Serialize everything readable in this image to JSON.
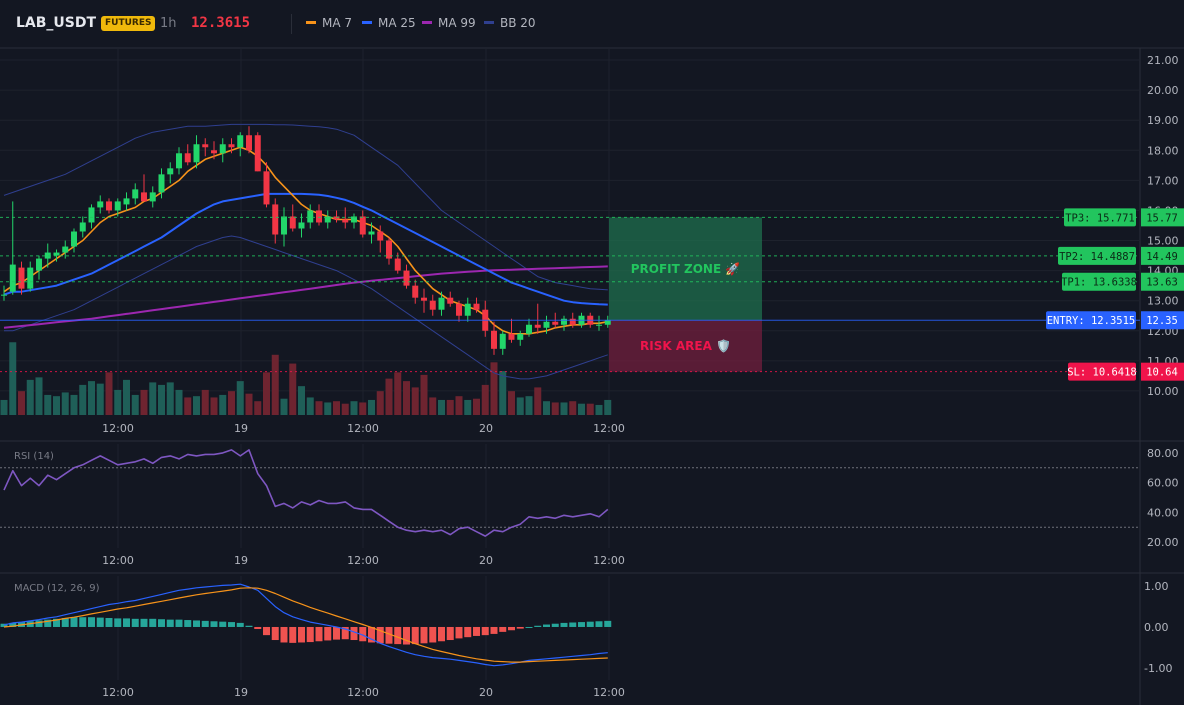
{
  "header": {
    "symbol": "LAB_USDT",
    "badge": "FUTURES",
    "timeframe": "1h",
    "last_price": "12.3615",
    "legend": [
      {
        "label": "MA 7",
        "color": "#f7931a"
      },
      {
        "label": "MA 25",
        "color": "#2962ff"
      },
      {
        "label": "MA 99",
        "color": "#9c27b0"
      },
      {
        "label": "BB 20",
        "color": "#2f3f8f"
      }
    ]
  },
  "colors": {
    "up": "#26a69a",
    "up_bright": "#22d66a",
    "down": "#f23645",
    "profit_zone": "#1f6f4e",
    "risk_area": "#6b1e3c",
    "entry_line": "#2962ff",
    "tp": "#22c55e",
    "sl": "#f0144b",
    "rsi": "#7e57c2"
  },
  "chart_data": [
    {
      "type": "candlestick",
      "pane": "price",
      "x_ticks": [
        "12:00",
        "19",
        "12:00",
        "20",
        "12:00"
      ],
      "y_ticks": [
        "21.00",
        "20.00",
        "19.00",
        "18.00",
        "17.00",
        "16.00",
        "15.00",
        "14.00",
        "13.00",
        "12.00",
        "11.00",
        "10.00"
      ],
      "ylim": [
        9.2,
        21.4
      ],
      "candles": [
        [
          13.2,
          13.5,
          13.0,
          13.2
        ],
        [
          13.3,
          16.3,
          13.2,
          14.2
        ],
        [
          14.1,
          14.3,
          13.2,
          13.4
        ],
        [
          13.4,
          14.3,
          13.3,
          14.1
        ],
        [
          14.0,
          14.5,
          13.7,
          14.4
        ],
        [
          14.4,
          14.9,
          14.1,
          14.6
        ],
        [
          14.5,
          14.7,
          14.3,
          14.6
        ],
        [
          14.6,
          15.0,
          14.4,
          14.8
        ],
        [
          14.8,
          15.4,
          14.6,
          15.3
        ],
        [
          15.3,
          15.8,
          15.1,
          15.6
        ],
        [
          15.6,
          16.2,
          15.4,
          16.1
        ],
        [
          16.1,
          16.5,
          15.9,
          16.3
        ],
        [
          16.3,
          16.4,
          15.9,
          16.0
        ],
        [
          16.0,
          16.4,
          15.8,
          16.3
        ],
        [
          16.2,
          16.6,
          16.0,
          16.4
        ],
        [
          16.4,
          16.9,
          16.2,
          16.7
        ],
        [
          16.6,
          17.2,
          16.4,
          16.3
        ],
        [
          16.3,
          16.8,
          16.1,
          16.6
        ],
        [
          16.6,
          17.4,
          16.4,
          17.2
        ],
        [
          17.2,
          17.6,
          16.9,
          17.4
        ],
        [
          17.4,
          18.1,
          17.2,
          17.9
        ],
        [
          17.9,
          18.2,
          17.5,
          17.6
        ],
        [
          17.6,
          18.5,
          17.4,
          18.2
        ],
        [
          18.2,
          18.4,
          17.8,
          18.1
        ],
        [
          18.0,
          18.3,
          17.7,
          17.9
        ],
        [
          17.9,
          18.4,
          17.6,
          18.2
        ],
        [
          18.2,
          18.4,
          17.9,
          18.1
        ],
        [
          18.1,
          18.6,
          17.8,
          18.5
        ],
        [
          18.5,
          18.8,
          17.9,
          18.0
        ],
        [
          18.5,
          18.6,
          17.3,
          17.3
        ],
        [
          17.3,
          17.6,
          16.1,
          16.2
        ],
        [
          16.2,
          16.4,
          14.9,
          15.2
        ],
        [
          15.2,
          16.1,
          14.8,
          15.8
        ],
        [
          15.8,
          16.2,
          15.3,
          15.4
        ],
        [
          15.4,
          15.9,
          15.1,
          15.6
        ],
        [
          15.6,
          16.2,
          15.4,
          16.0
        ],
        [
          16.0,
          16.2,
          15.5,
          15.6
        ],
        [
          15.6,
          16.0,
          15.4,
          15.8
        ],
        [
          15.8,
          16.0,
          15.6,
          15.7
        ],
        [
          15.7,
          16.1,
          15.4,
          15.6
        ],
        [
          15.6,
          15.9,
          15.4,
          15.8
        ],
        [
          15.8,
          16.0,
          15.1,
          15.2
        ],
        [
          15.2,
          15.6,
          14.9,
          15.3
        ],
        [
          15.3,
          15.5,
          14.6,
          15.0
        ],
        [
          15.0,
          15.1,
          14.2,
          14.4
        ],
        [
          14.4,
          14.6,
          13.9,
          14.0
        ],
        [
          14.0,
          14.2,
          13.4,
          13.5
        ],
        [
          13.5,
          13.7,
          12.9,
          13.1
        ],
        [
          13.1,
          13.4,
          12.6,
          13.0
        ],
        [
          13.0,
          13.2,
          12.5,
          12.7
        ],
        [
          12.7,
          13.3,
          12.5,
          13.1
        ],
        [
          13.1,
          13.3,
          12.8,
          12.9
        ],
        [
          12.9,
          13.0,
          12.3,
          12.5
        ],
        [
          12.5,
          13.1,
          12.3,
          12.9
        ],
        [
          12.9,
          13.1,
          12.6,
          12.7
        ],
        [
          12.7,
          13.0,
          11.8,
          12.0
        ],
        [
          12.0,
          12.3,
          11.2,
          11.4
        ],
        [
          11.4,
          12.0,
          11.2,
          11.9
        ],
        [
          11.9,
          12.4,
          11.6,
          11.7
        ],
        [
          11.7,
          12.0,
          11.5,
          11.9
        ],
        [
          11.9,
          12.4,
          11.8,
          12.2
        ],
        [
          12.2,
          12.9,
          11.9,
          12.1
        ],
        [
          12.1,
          12.5,
          11.9,
          12.3
        ],
        [
          12.3,
          12.6,
          12.1,
          12.2
        ],
        [
          12.2,
          12.5,
          12.0,
          12.4
        ],
        [
          12.4,
          12.6,
          12.1,
          12.2
        ],
        [
          12.2,
          12.6,
          12.1,
          12.5
        ],
        [
          12.5,
          12.6,
          12.1,
          12.2
        ],
        [
          12.2,
          12.5,
          12.0,
          12.2
        ],
        [
          12.2,
          12.5,
          12.1,
          12.36
        ]
      ],
      "volume": [
        0.12,
        0.58,
        0.19,
        0.28,
        0.3,
        0.16,
        0.15,
        0.18,
        0.16,
        0.24,
        0.27,
        0.25,
        0.34,
        0.2,
        0.28,
        0.16,
        0.2,
        0.26,
        0.24,
        0.26,
        0.2,
        0.14,
        0.15,
        0.2,
        0.14,
        0.16,
        0.19,
        0.27,
        0.17,
        0.11,
        0.34,
        0.48,
        0.13,
        0.41,
        0.23,
        0.14,
        0.11,
        0.1,
        0.11,
        0.09,
        0.11,
        0.1,
        0.12,
        0.19,
        0.29,
        0.34,
        0.27,
        0.22,
        0.32,
        0.14,
        0.12,
        0.12,
        0.15,
        0.12,
        0.13,
        0.24,
        0.42,
        0.35,
        0.19,
        0.14,
        0.15,
        0.22,
        0.11,
        0.1,
        0.1,
        0.11,
        0.09,
        0.09,
        0.08,
        0.12
      ],
      "ma7": [
        13.3,
        13.5,
        13.6,
        13.8,
        14.0,
        14.2,
        14.4,
        14.6,
        14.8,
        15.0,
        15.3,
        15.6,
        15.8,
        15.9,
        16.0,
        16.1,
        16.3,
        16.4,
        16.6,
        16.8,
        17.0,
        17.3,
        17.5,
        17.7,
        17.8,
        17.9,
        18.0,
        18.1,
        18.0,
        17.8,
        17.5,
        17.1,
        16.8,
        16.5,
        16.2,
        16.0,
        15.9,
        15.8,
        15.7,
        15.7,
        15.7,
        15.6,
        15.5,
        15.3,
        15.1,
        14.8,
        14.4,
        14.0,
        13.7,
        13.4,
        13.2,
        13.0,
        12.9,
        12.8,
        12.7,
        12.5,
        12.2,
        12.0,
        11.9,
        11.9,
        11.9,
        11.95,
        12.0,
        12.1,
        12.15,
        12.2,
        12.2,
        12.25,
        12.25,
        12.3
      ],
      "ma25": [
        13.2,
        13.3,
        13.3,
        13.35,
        13.4,
        13.45,
        13.5,
        13.6,
        13.7,
        13.8,
        13.9,
        14.05,
        14.2,
        14.35,
        14.5,
        14.65,
        14.8,
        14.95,
        15.1,
        15.3,
        15.5,
        15.7,
        15.9,
        16.05,
        16.2,
        16.3,
        16.35,
        16.4,
        16.45,
        16.5,
        16.55,
        16.55,
        16.55,
        16.55,
        16.55,
        16.54,
        16.52,
        16.48,
        16.42,
        16.35,
        16.25,
        16.12,
        16.0,
        15.85,
        15.7,
        15.55,
        15.4,
        15.25,
        15.1,
        14.95,
        14.8,
        14.65,
        14.5,
        14.35,
        14.2,
        14.05,
        13.9,
        13.75,
        13.6,
        13.5,
        13.4,
        13.3,
        13.2,
        13.1,
        13.0,
        12.95,
        12.92,
        12.9,
        12.88,
        12.87
      ],
      "ma99": [
        12.1,
        12.13,
        12.16,
        12.19,
        12.22,
        12.25,
        12.28,
        12.31,
        12.34,
        12.37,
        12.4,
        12.44,
        12.48,
        12.52,
        12.56,
        12.6,
        12.64,
        12.68,
        12.72,
        12.76,
        12.8,
        12.84,
        12.88,
        12.92,
        12.96,
        13.0,
        13.04,
        13.08,
        13.12,
        13.16,
        13.2,
        13.24,
        13.28,
        13.32,
        13.36,
        13.4,
        13.44,
        13.48,
        13.52,
        13.56,
        13.6,
        13.63,
        13.66,
        13.69,
        13.72,
        13.75,
        13.78,
        13.81,
        13.84,
        13.87,
        13.9,
        13.92,
        13.94,
        13.96,
        13.98,
        14.0,
        14.01,
        14.02,
        14.03,
        14.04,
        14.05,
        14.06,
        14.07,
        14.08,
        14.09,
        14.1,
        14.11,
        14.12,
        14.13,
        14.14
      ],
      "bb_upper": [
        16.5,
        16.6,
        16.7,
        16.8,
        16.9,
        17.0,
        17.1,
        17.2,
        17.35,
        17.5,
        17.65,
        17.8,
        17.95,
        18.1,
        18.25,
        18.4,
        18.5,
        18.6,
        18.65,
        18.7,
        18.75,
        18.8,
        18.8,
        18.8,
        18.82,
        18.84,
        18.86,
        18.86,
        18.86,
        18.86,
        18.86,
        18.85,
        18.85,
        18.84,
        18.82,
        18.8,
        18.78,
        18.75,
        18.7,
        18.6,
        18.5,
        18.3,
        18.1,
        17.9,
        17.7,
        17.5,
        17.2,
        16.9,
        16.6,
        16.3,
        16.0,
        15.8,
        15.6,
        15.4,
        15.2,
        15.0,
        14.8,
        14.6,
        14.4,
        14.2,
        14.0,
        13.8,
        13.7,
        13.6,
        13.55,
        13.5,
        13.45,
        13.4,
        13.38,
        13.36
      ],
      "bb_lower": [
        12.0,
        12.0,
        12.1,
        12.2,
        12.3,
        12.4,
        12.5,
        12.6,
        12.7,
        12.85,
        13.0,
        13.15,
        13.3,
        13.45,
        13.6,
        13.75,
        13.9,
        14.05,
        14.2,
        14.35,
        14.5,
        14.65,
        14.8,
        14.9,
        15.0,
        15.1,
        15.15,
        15.1,
        15.0,
        14.9,
        14.8,
        14.7,
        14.6,
        14.5,
        14.4,
        14.3,
        14.2,
        14.1,
        14.0,
        13.85,
        13.7,
        13.55,
        13.4,
        13.2,
        13.0,
        12.8,
        12.6,
        12.4,
        12.2,
        12.0,
        11.8,
        11.6,
        11.4,
        11.2,
        11.0,
        10.8,
        10.6,
        10.5,
        10.45,
        10.4,
        10.4,
        10.45,
        10.5,
        10.6,
        10.7,
        10.8,
        10.9,
        11.0,
        11.1,
        11.2
      ],
      "levels": {
        "tp3": {
          "label": "TP3: 15.771",
          "axis": "15.77",
          "value": 15.77
        },
        "tp2": {
          "label": "TP2: 14.4887",
          "axis": "14.49",
          "value": 14.49
        },
        "tp1": {
          "label": "TP1: 13.6338",
          "axis": "13.63",
          "value": 13.63
        },
        "entry": {
          "label": "ENTRY: 12.3515",
          "axis": "12.35",
          "value": 12.35
        },
        "sl": {
          "label": "SL: 10.6418",
          "axis": "10.64",
          "value": 10.64
        }
      },
      "zones": {
        "profit": "PROFIT ZONE 🚀",
        "risk": "RISK AREA 🛡️"
      }
    },
    {
      "type": "line",
      "pane": "rsi",
      "title": "RSI (14)",
      "y_ticks": [
        "80.00",
        "60.00",
        "40.00",
        "20.00"
      ],
      "ylim": [
        16,
        86
      ],
      "levels": [
        70,
        30
      ],
      "values": [
        55,
        68,
        58,
        63,
        58,
        65,
        62,
        66,
        70,
        72,
        75,
        78,
        75,
        72,
        73,
        74,
        76,
        73,
        77,
        78,
        76,
        79,
        78,
        79,
        79,
        80,
        82,
        78,
        82,
        66,
        58,
        44,
        46,
        43,
        47,
        45,
        48,
        46,
        46,
        47,
        43,
        42,
        42,
        38,
        34,
        30,
        28,
        27,
        28,
        27,
        28,
        25,
        29,
        30,
        27,
        24,
        28,
        27,
        30,
        32,
        37,
        36,
        37,
        36,
        38,
        37,
        38,
        39,
        37,
        42
      ]
    },
    {
      "type": "line",
      "pane": "macd",
      "title": "MACD (12, 26, 9)",
      "y_ticks": [
        "1.00",
        "0.00",
        "-1.00"
      ],
      "ylim": [
        -1.3,
        1.25
      ],
      "macd": [
        0.05,
        0.1,
        0.12,
        0.15,
        0.18,
        0.22,
        0.25,
        0.3,
        0.35,
        0.4,
        0.45,
        0.5,
        0.55,
        0.58,
        0.62,
        0.65,
        0.7,
        0.75,
        0.8,
        0.85,
        0.9,
        0.93,
        0.96,
        0.98,
        1.0,
        1.02,
        1.03,
        1.05,
        0.98,
        0.9,
        0.7,
        0.5,
        0.35,
        0.25,
        0.18,
        0.12,
        0.08,
        0.04,
        0.0,
        -0.05,
        -0.12,
        -0.2,
        -0.3,
        -0.4,
        -0.48,
        -0.55,
        -0.62,
        -0.68,
        -0.72,
        -0.75,
        -0.77,
        -0.79,
        -0.82,
        -0.85,
        -0.88,
        -0.92,
        -0.95,
        -0.93,
        -0.9,
        -0.86,
        -0.82,
        -0.8,
        -0.78,
        -0.76,
        -0.74,
        -0.72,
        -0.7,
        -0.68,
        -0.65,
        -0.63
      ],
      "signal": [
        0.0,
        0.02,
        0.05,
        0.08,
        0.11,
        0.14,
        0.17,
        0.21,
        0.24,
        0.28,
        0.32,
        0.36,
        0.4,
        0.44,
        0.47,
        0.51,
        0.55,
        0.59,
        0.63,
        0.67,
        0.71,
        0.75,
        0.79,
        0.82,
        0.85,
        0.88,
        0.91,
        0.95,
        0.96,
        0.95,
        0.9,
        0.82,
        0.73,
        0.64,
        0.56,
        0.48,
        0.41,
        0.34,
        0.27,
        0.2,
        0.13,
        0.06,
        -0.01,
        -0.09,
        -0.17,
        -0.25,
        -0.33,
        -0.41,
        -0.48,
        -0.55,
        -0.6,
        -0.65,
        -0.7,
        -0.74,
        -0.78,
        -0.81,
        -0.84,
        -0.85,
        -0.86,
        -0.86,
        -0.85,
        -0.84,
        -0.83,
        -0.82,
        -0.81,
        -0.8,
        -0.79,
        -0.78,
        -0.77,
        -0.76
      ],
      "histogram": [
        0.08,
        0.1,
        0.12,
        0.14,
        0.16,
        0.18,
        0.2,
        0.22,
        0.24,
        0.24,
        0.24,
        0.23,
        0.22,
        0.21,
        0.21,
        0.2,
        0.2,
        0.2,
        0.19,
        0.18,
        0.18,
        0.17,
        0.16,
        0.15,
        0.14,
        0.13,
        0.12,
        0.1,
        0.03,
        -0.05,
        -0.2,
        -0.32,
        -0.38,
        -0.39,
        -0.38,
        -0.37,
        -0.35,
        -0.33,
        -0.31,
        -0.3,
        -0.32,
        -0.35,
        -0.38,
        -0.4,
        -0.41,
        -0.42,
        -0.43,
        -0.42,
        -0.4,
        -0.38,
        -0.35,
        -0.32,
        -0.28,
        -0.25,
        -0.22,
        -0.2,
        -0.17,
        -0.12,
        -0.08,
        -0.04,
        0.0,
        0.03,
        0.06,
        0.08,
        0.1,
        0.11,
        0.12,
        0.13,
        0.14,
        0.15
      ]
    }
  ]
}
